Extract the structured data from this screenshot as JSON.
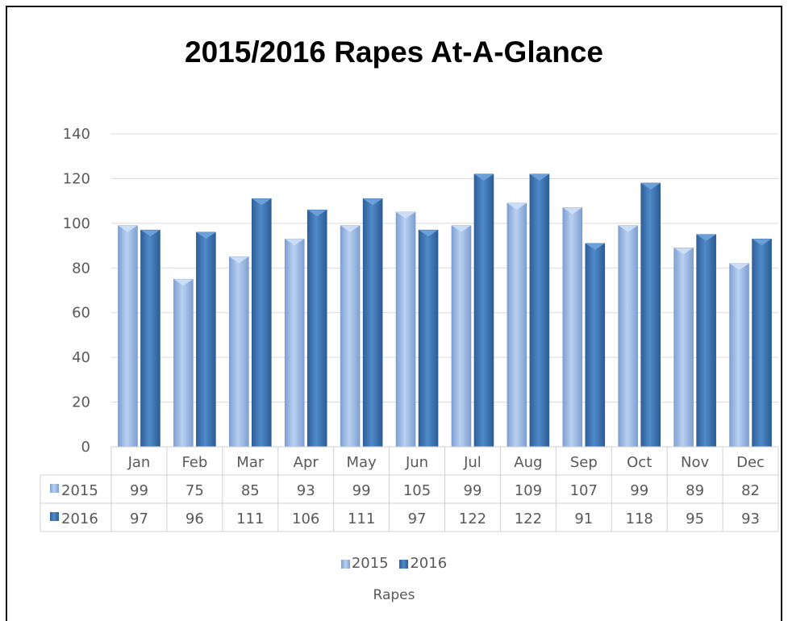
{
  "chart_data": {
    "type": "bar",
    "title": "2015/2016 Rapes At-A-Glance",
    "xlabel": "Rapes",
    "ylabel": "",
    "ylim": [
      0,
      140
    ],
    "yticks": [
      "0",
      "20",
      "40",
      "60",
      "80",
      "100",
      "120",
      "140"
    ],
    "grid": true,
    "legend_position": "bottom",
    "categories": [
      "Jan",
      "Feb",
      "Mar",
      "Apr",
      "May",
      "Jun",
      "Jul",
      "Aug",
      "Sep",
      "Oct",
      "Nov",
      "Dec"
    ],
    "series": [
      {
        "name": "2015",
        "color": "#9DB9E6",
        "values": [
          99,
          75,
          85,
          93,
          99,
          105,
          99,
          109,
          107,
          99,
          89,
          82
        ]
      },
      {
        "name": "2016",
        "color": "#3F78B8",
        "values": [
          97,
          96,
          111,
          106,
          111,
          97,
          122,
          122,
          91,
          118,
          95,
          93
        ]
      }
    ]
  }
}
